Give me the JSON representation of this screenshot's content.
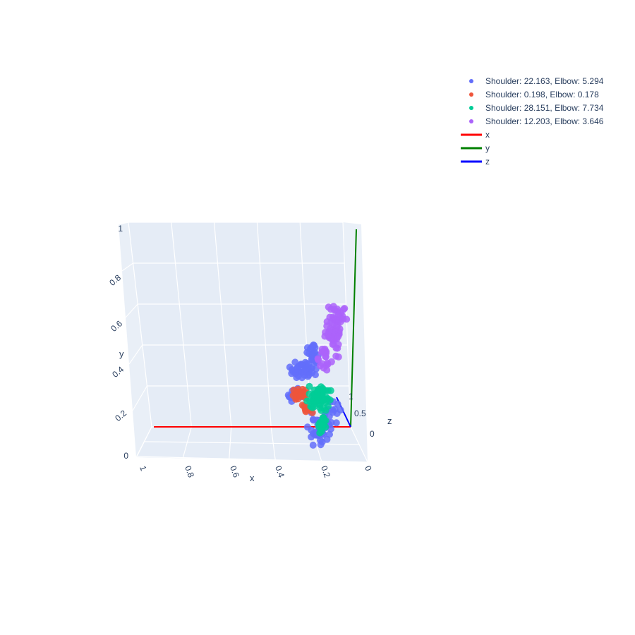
{
  "chart_data": {
    "type": "scatter",
    "mode": "3d",
    "axes": {
      "x": {
        "title": "x",
        "range": [
          0,
          1
        ],
        "ticks": [
          "0",
          "0.2",
          "0.4",
          "0.6",
          "0.8",
          "1"
        ]
      },
      "y": {
        "title": "y",
        "range": [
          0,
          1
        ],
        "ticks": [
          "0",
          "0.2",
          "0.4",
          "0.6",
          "0.8",
          "1"
        ]
      },
      "z": {
        "title": "z",
        "range": [
          0,
          1
        ],
        "ticks": [
          "0",
          "0.5",
          "1"
        ]
      }
    },
    "grid": true,
    "legend_position": "top-right",
    "series": [
      {
        "name": "Shoulder: 22.163, Elbow: 5.294",
        "color": "#636efa",
        "kind": "markers",
        "cluster": "lower"
      },
      {
        "name": "Shoulder: 0.198, Elbow: 0.178",
        "color": "#ef553b",
        "kind": "markers",
        "cluster": "core"
      },
      {
        "name": "Shoulder: 28.151, Elbow: 7.734",
        "color": "#00cc96",
        "kind": "markers",
        "cluster": "center"
      },
      {
        "name": "Shoulder: 12.203, Elbow: 3.646",
        "color": "#ab63fa",
        "kind": "markers",
        "cluster": "upper"
      },
      {
        "name": "x",
        "color": "#ff0000",
        "kind": "line",
        "from": [
          0,
          0,
          0
        ],
        "to": [
          1,
          0,
          0
        ]
      },
      {
        "name": "y",
        "color": "#008000",
        "kind": "line",
        "from": [
          0,
          0,
          0
        ],
        "to": [
          0,
          1,
          0
        ]
      },
      {
        "name": "z",
        "color": "#0000ff",
        "kind": "line",
        "from": [
          0,
          0,
          0
        ],
        "to": [
          0,
          0,
          1
        ]
      }
    ]
  }
}
